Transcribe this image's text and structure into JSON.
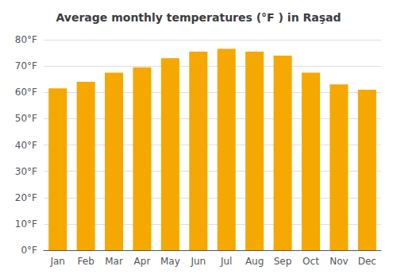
{
  "chart_data": {
    "type": "bar",
    "title": "Average monthly temperatures (°F ) in Raşad",
    "categories": [
      "Jan",
      "Feb",
      "Mar",
      "Apr",
      "May",
      "Jun",
      "Jul",
      "Aug",
      "Sep",
      "Oct",
      "Nov",
      "Dec"
    ],
    "values": [
      61.5,
      64.0,
      67.5,
      69.5,
      73.0,
      75.5,
      76.5,
      75.5,
      74.0,
      67.5,
      63.0,
      61.0
    ],
    "color": "#F5A800",
    "ylim": [
      0,
      80
    ],
    "yticks": [
      {
        "value": 0,
        "label": "0°F"
      },
      {
        "value": 10,
        "label": "10°F"
      },
      {
        "value": 20,
        "label": "20°F"
      },
      {
        "value": 30,
        "label": "30°F"
      },
      {
        "value": 40,
        "label": "40°F"
      },
      {
        "value": 50,
        "label": "50°F"
      },
      {
        "value": 60,
        "label": "60°F"
      },
      {
        "value": 70,
        "label": "70°F"
      },
      {
        "value": 80,
        "label": "80°F"
      }
    ],
    "grid": true
  }
}
